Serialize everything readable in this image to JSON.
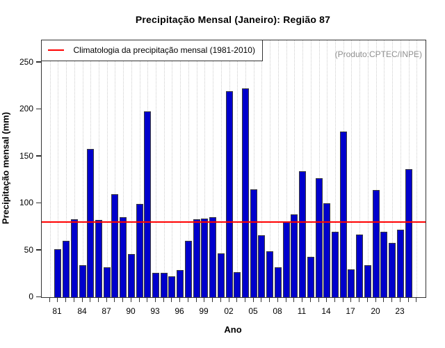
{
  "chart_data": {
    "type": "bar",
    "title": "Precipitação Mensal (Janeiro): Região 87",
    "xlabel": "Ano",
    "ylabel": "Precipitação mensal (mm)",
    "legend": "Climatologia da precipitação mensal (1981-2010)",
    "annotation": "(Produto:CPTEC/INPE)",
    "climatology_value": 80,
    "bar_color": "#0000cc",
    "climatology_color": "#ff0000",
    "ylim": [
      0,
      273
    ],
    "y_ticks": [
      0,
      50,
      100,
      150,
      200,
      250
    ],
    "grid": "vertical-dotted",
    "legend_position": "top-left",
    "years": [
      1981,
      1982,
      1983,
      1984,
      1985,
      1986,
      1987,
      1988,
      1989,
      1990,
      1991,
      1992,
      1993,
      1994,
      1995,
      1996,
      1997,
      1998,
      1999,
      2000,
      2001,
      2002,
      2003,
      2004,
      2005,
      2006,
      2007,
      2008,
      2009,
      2010,
      2011,
      2012,
      2013,
      2014,
      2015,
      2016,
      2017,
      2018,
      2019,
      2020,
      2021,
      2022,
      2023,
      2024
    ],
    "values": [
      51,
      60,
      83,
      34,
      158,
      82,
      32,
      110,
      85,
      46,
      99,
      198,
      26,
      26,
      22,
      29,
      60,
      83,
      84,
      85,
      47,
      219,
      27,
      222,
      115,
      66,
      49,
      32,
      81,
      88,
      134,
      43,
      127,
      100,
      70,
      176,
      30,
      67,
      34,
      114,
      70,
      58,
      72,
      136
    ],
    "labeled_years": [
      1981,
      1984,
      1987,
      1990,
      1993,
      1996,
      1999,
      2002,
      2005,
      2008,
      2011,
      2014,
      2017,
      2020,
      2023
    ],
    "x_tick_labels": [
      "81",
      "84",
      "87",
      "90",
      "93",
      "96",
      "99",
      "02",
      "05",
      "08",
      "11",
      "14",
      "17",
      "20",
      "23"
    ]
  }
}
